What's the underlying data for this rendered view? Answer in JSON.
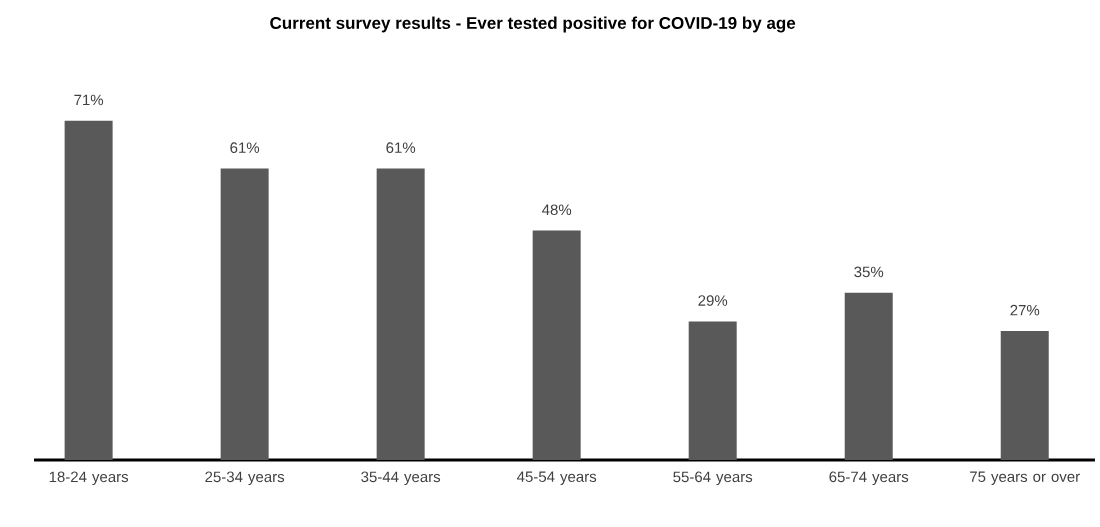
{
  "chart_data": {
    "type": "bar",
    "title": "Current survey results - Ever tested positive for COVID-19 by age",
    "categories": [
      "18-24 years",
      "25-34 years",
      "35-44 years",
      "45-54 years",
      "55-64 years",
      "65-74 years",
      "75 years or over"
    ],
    "values": [
      71,
      61,
      61,
      48,
      29,
      35,
      27
    ],
    "value_labels": [
      "71%",
      "61%",
      "61%",
      "48%",
      "29%",
      "35%",
      "27%"
    ],
    "color": "#595959"
  }
}
